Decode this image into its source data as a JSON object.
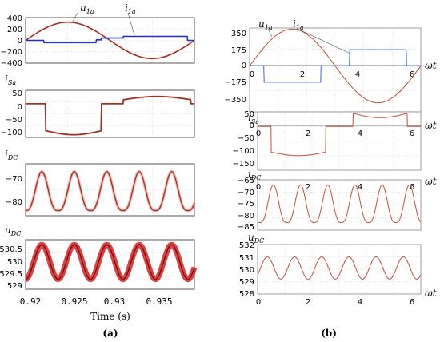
{
  "figure": {
    "caption_a": "(a)",
    "caption_b": "(b)",
    "time_axis_label": "Time (s)",
    "time_ticks": [
      "0.92",
      "0.925",
      "0.93",
      "0.935"
    ],
    "omega_label": "ωt"
  },
  "colors": {
    "sim_red": "#a03020",
    "sim_red_glow": "#e04040",
    "sim_blue": "#1f2fd0",
    "model_red": "#c0503a",
    "model_blue": "#4060d8"
  },
  "chart_data": [
    {
      "type": "line",
      "panel": "a1",
      "labels": [
        {
          "main": "u",
          "sub": "1a"
        },
        {
          "main": "i",
          "sub": "1a"
        }
      ],
      "x": [
        0.92,
        0.9395
      ],
      "ylim": [
        -400,
        400
      ],
      "yticks": [
        "400",
        "200",
        "0",
        "−200",
        "−400"
      ],
      "series": [
        {
          "name": "u1a",
          "shape": "sine",
          "amplitude": 320
        },
        {
          "name": "i1a",
          "shape": "square",
          "levels": [
            -40,
            0,
            40,
            70
          ]
        }
      ]
    },
    {
      "type": "line",
      "panel": "a2",
      "label": {
        "main": "i",
        "sub": "Sa"
      },
      "ylim": [
        -125,
        50
      ],
      "yticks": [
        "50",
        "0",
        "−50",
        "−100"
      ],
      "series": [
        {
          "name": "iSa",
          "shape": "pulse",
          "high": 25,
          "low": -115
        }
      ]
    },
    {
      "type": "line",
      "panel": "a3",
      "label": {
        "main": "i",
        "sub": "DC"
      },
      "ylim": [
        -84,
        -64
      ],
      "yticks": [
        "−70",
        "−80"
      ],
      "series": [
        {
          "name": "iDC",
          "shape": "ripple",
          "min": -82,
          "max": -67,
          "cycles": 6
        }
      ]
    },
    {
      "type": "line",
      "panel": "a4",
      "label": {
        "main": "u",
        "sub": "DC"
      },
      "ylim": [
        528.8,
        530.8
      ],
      "yticks": [
        "530.5",
        "530",
        "529.5",
        "529"
      ],
      "series": [
        {
          "name": "uDC",
          "shape": "ripple",
          "min": 529.2,
          "max": 530.6,
          "cycles": 6
        }
      ]
    },
    {
      "type": "line",
      "panel": "b1",
      "labels": [
        {
          "main": "u",
          "sub": "1a"
        },
        {
          "main": "i",
          "sub": "1a"
        }
      ],
      "xlim": [
        0,
        6.28
      ],
      "xticks": [
        "0",
        "2",
        "4",
        "6"
      ],
      "ylim": [
        -350,
        350
      ],
      "yticks": [
        "350",
        "175",
        "0",
        "−175",
        "−350"
      ],
      "series": [
        {
          "name": "u1a",
          "shape": "sine",
          "amplitude": 340
        },
        {
          "name": "i1a",
          "shape": "square",
          "high": 150,
          "low": -150,
          "edges": [
            0.52,
            2.62,
            3.67,
            5.76
          ]
        }
      ]
    },
    {
      "type": "line",
      "panel": "b2",
      "label": {
        "main": "i",
        "sub": "Sa"
      },
      "xlim": [
        0,
        6.28
      ],
      "xticks": [
        "0",
        "2",
        "4",
        "6"
      ],
      "ylim": [
        -150,
        50
      ],
      "yticks": [
        "50",
        "0",
        "−50",
        "−100",
        "−150"
      ],
      "series": [
        {
          "name": "iSa",
          "shape": "pulse",
          "edges": [
            0.52,
            2.62,
            3.67,
            5.76
          ],
          "high": 45,
          "low": -100
        }
      ]
    },
    {
      "type": "line",
      "panel": "b3",
      "label": {
        "main": "i",
        "sub": "DC"
      },
      "xlim": [
        0,
        6.28
      ],
      "xticks": [
        "0",
        "2",
        "4",
        "6"
      ],
      "ylim": [
        -85,
        -65
      ],
      "yticks": [
        "−65",
        "−70",
        "−75",
        "−80",
        "−85"
      ],
      "series": [
        {
          "name": "iDC",
          "shape": "ripple",
          "min": -82,
          "max": -67,
          "cycles": 6
        }
      ]
    },
    {
      "type": "line",
      "panel": "b4",
      "label": {
        "main": "u",
        "sub": "DC"
      },
      "xlim": [
        0,
        6.28
      ],
      "xticks": [
        "0",
        "2",
        "4",
        "6"
      ],
      "ylim": [
        528,
        532
      ],
      "yticks": [
        "532",
        "531",
        "530",
        "529",
        "528"
      ],
      "series": [
        {
          "name": "uDC",
          "shape": "ripple",
          "min": 529.2,
          "max": 531,
          "cycles": 6
        }
      ]
    }
  ]
}
